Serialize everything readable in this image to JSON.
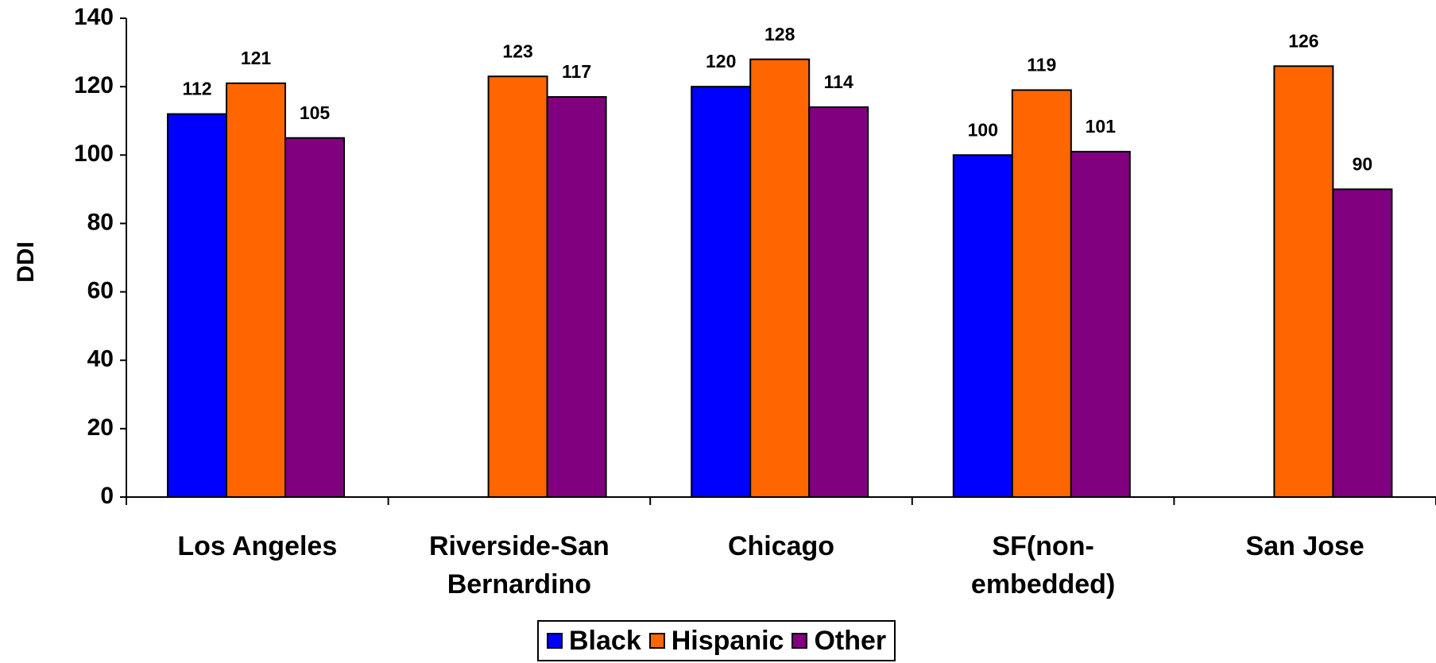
{
  "chart_data": {
    "type": "bar",
    "y_label": "DDI",
    "categories": [
      "Los Angeles",
      "Riverside-San Bernardino",
      "Chicago",
      "SF(non-embedded)",
      "San Jose"
    ],
    "series": [
      {
        "name": "Black",
        "color": "#0000ff",
        "values": [
          112,
          null,
          120,
          100,
          null
        ]
      },
      {
        "name": "Hispanic",
        "color": "#ff6600",
        "values": [
          121,
          123,
          128,
          119,
          126
        ]
      },
      {
        "name": "Other",
        "color": "#800080",
        "values": [
          105,
          117,
          114,
          101,
          90
        ]
      }
    ],
    "ylim": [
      0,
      140
    ],
    "yticks": [
      0,
      20,
      40,
      60,
      80,
      100,
      120,
      140
    ]
  }
}
